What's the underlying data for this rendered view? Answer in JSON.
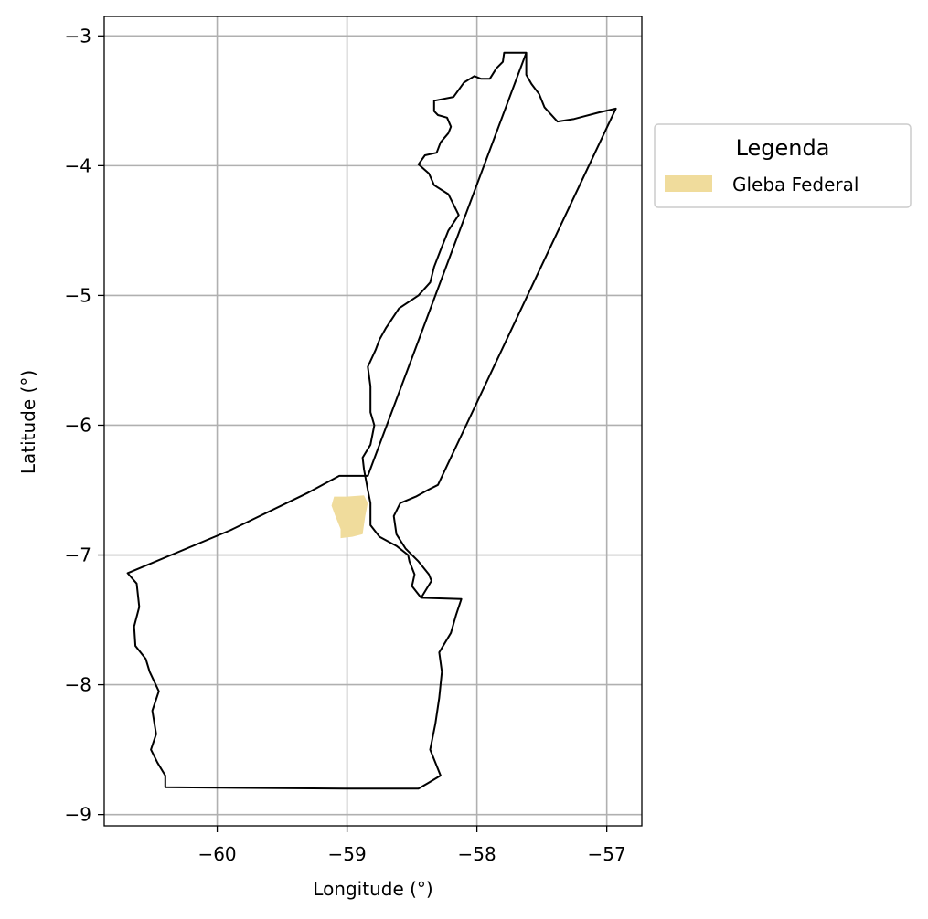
{
  "map": {
    "xlabel": "Longitude (°)",
    "ylabel": "Latitude (°)",
    "x_ticks": [
      {
        "value": -60,
        "label": "−60"
      },
      {
        "value": -59,
        "label": "−59"
      },
      {
        "value": -58,
        "label": "−58"
      },
      {
        "value": -57,
        "label": "−57"
      }
    ],
    "y_ticks": [
      {
        "value": -3,
        "label": "−3"
      },
      {
        "value": -4,
        "label": "−4"
      },
      {
        "value": -5,
        "label": "−5"
      },
      {
        "value": -6,
        "label": "−6"
      },
      {
        "value": -7,
        "label": "−7"
      },
      {
        "value": -8,
        "label": "−8"
      },
      {
        "value": -9,
        "label": "−9"
      }
    ],
    "xlim": [
      -60.87,
      -56.73
    ],
    "ylim": [
      -9.087,
      -2.85
    ],
    "grid": true,
    "legend": {
      "title": "Legenda",
      "placement": "outside-right-top",
      "entries": [
        {
          "label": "Gleba Federal",
          "color": "#f0dc9c"
        }
      ]
    },
    "colors": {
      "boundary": "#000000",
      "grid": "#b0b0b0",
      "gleba": "#f0dc9c"
    },
    "boundary_lonlat": [
      [
        -57.62,
        -3.13
      ],
      [
        -57.79,
        -3.13
      ],
      [
        -57.8,
        -3.2
      ],
      [
        -57.85,
        -3.25
      ],
      [
        -57.9,
        -3.33
      ],
      [
        -57.97,
        -3.33
      ],
      [
        -58.02,
        -3.31
      ],
      [
        -58.1,
        -3.36
      ],
      [
        -58.18,
        -3.47
      ],
      [
        -58.33,
        -3.5
      ],
      [
        -58.33,
        -3.58
      ],
      [
        -58.3,
        -3.61
      ],
      [
        -58.23,
        -3.63
      ],
      [
        -58.2,
        -3.7
      ],
      [
        -58.22,
        -3.75
      ],
      [
        -58.28,
        -3.82
      ],
      [
        -58.31,
        -3.9
      ],
      [
        -58.4,
        -3.92
      ],
      [
        -58.45,
        -3.99
      ],
      [
        -58.37,
        -4.06
      ],
      [
        -58.33,
        -4.15
      ],
      [
        -58.22,
        -4.22
      ],
      [
        -58.14,
        -4.38
      ],
      [
        -58.22,
        -4.5
      ],
      [
        -58.28,
        -4.65
      ],
      [
        -58.33,
        -4.78
      ],
      [
        -58.36,
        -4.9
      ],
      [
        -58.45,
        -5.0
      ],
      [
        -58.6,
        -5.1
      ],
      [
        -58.7,
        -5.25
      ],
      [
        -58.75,
        -5.34
      ],
      [
        -58.78,
        -5.42
      ],
      [
        -58.84,
        -5.55
      ],
      [
        -58.82,
        -5.7
      ],
      [
        -58.82,
        -5.9
      ],
      [
        -58.79,
        -6.0
      ],
      [
        -58.82,
        -6.15
      ],
      [
        -58.88,
        -6.25
      ],
      [
        -58.87,
        -6.34
      ],
      [
        -58.84,
        -6.5
      ],
      [
        -58.82,
        -6.6
      ],
      [
        -58.82,
        -6.77
      ],
      [
        -58.75,
        -6.86
      ],
      [
        -58.62,
        -6.93
      ],
      [
        -58.53,
        -7.0
      ],
      [
        -58.52,
        -7.05
      ],
      [
        -58.48,
        -7.15
      ],
      [
        -58.5,
        -7.24
      ],
      [
        -58.43,
        -7.33
      ],
      [
        -58.12,
        -7.34
      ],
      [
        -58.16,
        -7.46
      ],
      [
        -58.2,
        -7.6
      ],
      [
        -58.29,
        -7.75
      ],
      [
        -58.27,
        -7.9
      ],
      [
        -58.29,
        -8.1
      ],
      [
        -58.32,
        -8.3
      ],
      [
        -58.36,
        -8.5
      ],
      [
        -58.28,
        -8.7
      ],
      [
        -58.38,
        -8.76
      ],
      [
        -58.45,
        -8.8
      ],
      [
        -59.02,
        -8.8
      ],
      [
        -60.4,
        -8.79
      ],
      [
        -60.4,
        -8.7
      ],
      [
        -60.46,
        -8.6
      ],
      [
        -60.51,
        -8.5
      ],
      [
        -60.47,
        -8.38
      ],
      [
        -60.5,
        -8.2
      ],
      [
        -60.45,
        -8.05
      ],
      [
        -60.52,
        -7.9
      ],
      [
        -60.55,
        -7.8
      ],
      [
        -60.63,
        -7.7
      ],
      [
        -60.64,
        -7.55
      ],
      [
        -60.6,
        -7.4
      ],
      [
        -60.62,
        -7.22
      ],
      [
        -60.69,
        -7.14
      ],
      [
        -59.9,
        -6.81
      ],
      [
        -59.3,
        -6.52
      ],
      [
        -59.06,
        -6.39
      ],
      [
        -58.84,
        -6.39
      ]
    ],
    "inner_boundary_lonlat": [
      [
        -58.43,
        -7.33
      ],
      [
        -58.35,
        -7.2
      ],
      [
        -58.37,
        -7.15
      ],
      [
        -58.45,
        -7.05
      ],
      [
        -58.55,
        -6.95
      ],
      [
        -58.62,
        -6.84
      ],
      [
        -58.64,
        -6.7
      ],
      [
        -58.59,
        -6.6
      ],
      [
        -58.47,
        -6.55
      ],
      [
        -58.38,
        -6.5
      ],
      [
        -58.3,
        -6.46
      ],
      [
        -56.93,
        -3.56
      ],
      [
        -57.06,
        -3.59
      ],
      [
        -57.25,
        -3.64
      ],
      [
        -57.38,
        -3.66
      ],
      [
        -57.48,
        -3.55
      ],
      [
        -57.52,
        -3.45
      ],
      [
        -57.58,
        -3.37
      ],
      [
        -57.62,
        -3.3
      ],
      [
        -57.62,
        -3.13
      ]
    ],
    "gleba_lonlat": [
      [
        -59.1,
        -6.55
      ],
      [
        -59.0,
        -6.55
      ],
      [
        -58.87,
        -6.54
      ],
      [
        -58.84,
        -6.6
      ],
      [
        -58.86,
        -6.7
      ],
      [
        -58.88,
        -6.84
      ],
      [
        -58.96,
        -6.86
      ],
      [
        -59.05,
        -6.87
      ],
      [
        -59.05,
        -6.8
      ],
      [
        -59.09,
        -6.7
      ],
      [
        -59.12,
        -6.62
      ]
    ]
  }
}
